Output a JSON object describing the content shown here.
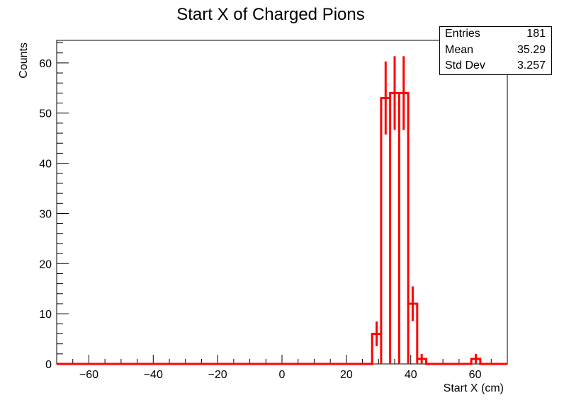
{
  "chart_data": {
    "type": "histogram",
    "title": "Start X of Charged Pions",
    "xlabel": "Start X (cm)",
    "ylabel": "Counts",
    "xlim": [
      -70,
      70
    ],
    "ylim": [
      0,
      64.5
    ],
    "x_ticks": [
      -60,
      -40,
      -20,
      0,
      20,
      40,
      60
    ],
    "y_ticks": [
      0,
      10,
      20,
      30,
      40,
      50,
      60
    ],
    "x_tick_labels": [
      "−60",
      "−40",
      "−20",
      "0",
      "20",
      "40",
      "60"
    ],
    "y_tick_labels": [
      "0",
      "10",
      "20",
      "30",
      "40",
      "50",
      "60"
    ],
    "bin_width": 2.8,
    "line_color": "#ff0000",
    "bins": [
      {
        "x0": 28.0,
        "x1": 30.8,
        "count": 6
      },
      {
        "x0": 30.8,
        "x1": 33.6,
        "count": 53
      },
      {
        "x0": 33.6,
        "x1": 36.4,
        "count": 54
      },
      {
        "x0": 36.4,
        "x1": 39.2,
        "count": 54
      },
      {
        "x0": 39.2,
        "x1": 42.0,
        "count": 12
      },
      {
        "x0": 42.0,
        "x1": 44.8,
        "count": 1
      },
      {
        "x0": 58.8,
        "x1": 61.6,
        "count": 1
      }
    ],
    "stats": {
      "entries_label": "Entries",
      "entries": "181",
      "mean_label": "Mean",
      "mean": "35.29",
      "stddev_label": "Std Dev",
      "stddev": "3.257"
    }
  }
}
